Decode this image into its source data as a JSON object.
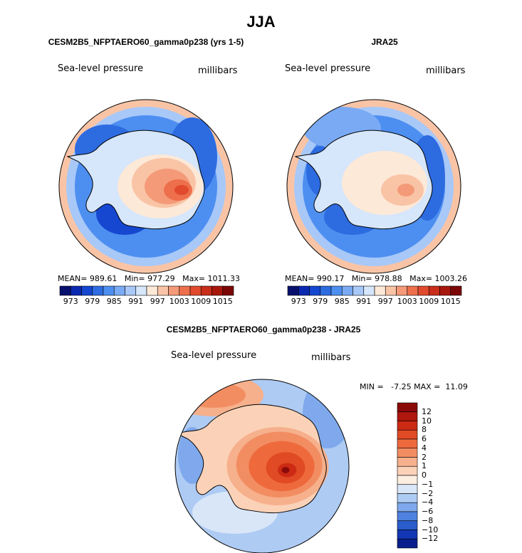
{
  "page": {
    "title": "JJA"
  },
  "panels": [
    {
      "title": "CESM2B5_NFPTAERO60_gamma0p238 (yrs 1-5)",
      "variable": "Sea-level pressure",
      "units": "millibars",
      "stats": "MEAN= 989.61   Min= 977.29   Max= 1011.33",
      "colorbar": {
        "labels": [
          "973",
          "979",
          "985",
          "991",
          "997",
          "1003",
          "1009",
          "1015"
        ],
        "colors": [
          "#08106e",
          "#0b28b0",
          "#1547d0",
          "#2d6be0",
          "#4d8ff0",
          "#7aaaf4",
          "#a8c8f8",
          "#d6e6fb",
          "#fde9d8",
          "#f9c4a6",
          "#f49a78",
          "#ee6f4c",
          "#e14a2c",
          "#c82e19",
          "#a8170c",
          "#7a0606"
        ]
      }
    },
    {
      "title": "JRA25",
      "variable": "Sea-level pressure",
      "units": "millibars",
      "stats": "MEAN= 990.17   Min= 978.88   Max= 1003.26",
      "colorbar": {
        "labels": [
          "973",
          "979",
          "985",
          "991",
          "997",
          "1003",
          "1009",
          "1015"
        ],
        "colors": [
          "#08106e",
          "#0b28b0",
          "#1547d0",
          "#2d6be0",
          "#4d8ff0",
          "#7aaaf4",
          "#a8c8f8",
          "#d6e6fb",
          "#fde9d8",
          "#f9c4a6",
          "#f49a78",
          "#ee6f4c",
          "#e14a2c",
          "#c82e19",
          "#a8170c",
          "#7a0606"
        ]
      }
    }
  ],
  "diff": {
    "title": "CESM2B5_NFPTAERO60_gamma0p238 - JRA25",
    "variable": "Sea-level pressure",
    "units": "millibars",
    "stats": "MIN =   -7.25 MAX =  11.09",
    "colorbar": {
      "labels": [
        "12",
        "10",
        "8",
        "6",
        "4",
        "2",
        "1",
        "0",
        "−1",
        "−2",
        "−4",
        "−6",
        "−8",
        "−10",
        "−12"
      ],
      "colors": [
        "#8a0a0a",
        "#b0170e",
        "#cc2a14",
        "#e04a24",
        "#ee6a3c",
        "#f28d62",
        "#f6b08c",
        "#fbd2b8",
        "#fdeee2",
        "#d9e6f8",
        "#aecbf4",
        "#7fa9ec",
        "#4f82e0",
        "#2a5ccc",
        "#1236b4",
        "#081e8c"
      ]
    }
  }
}
